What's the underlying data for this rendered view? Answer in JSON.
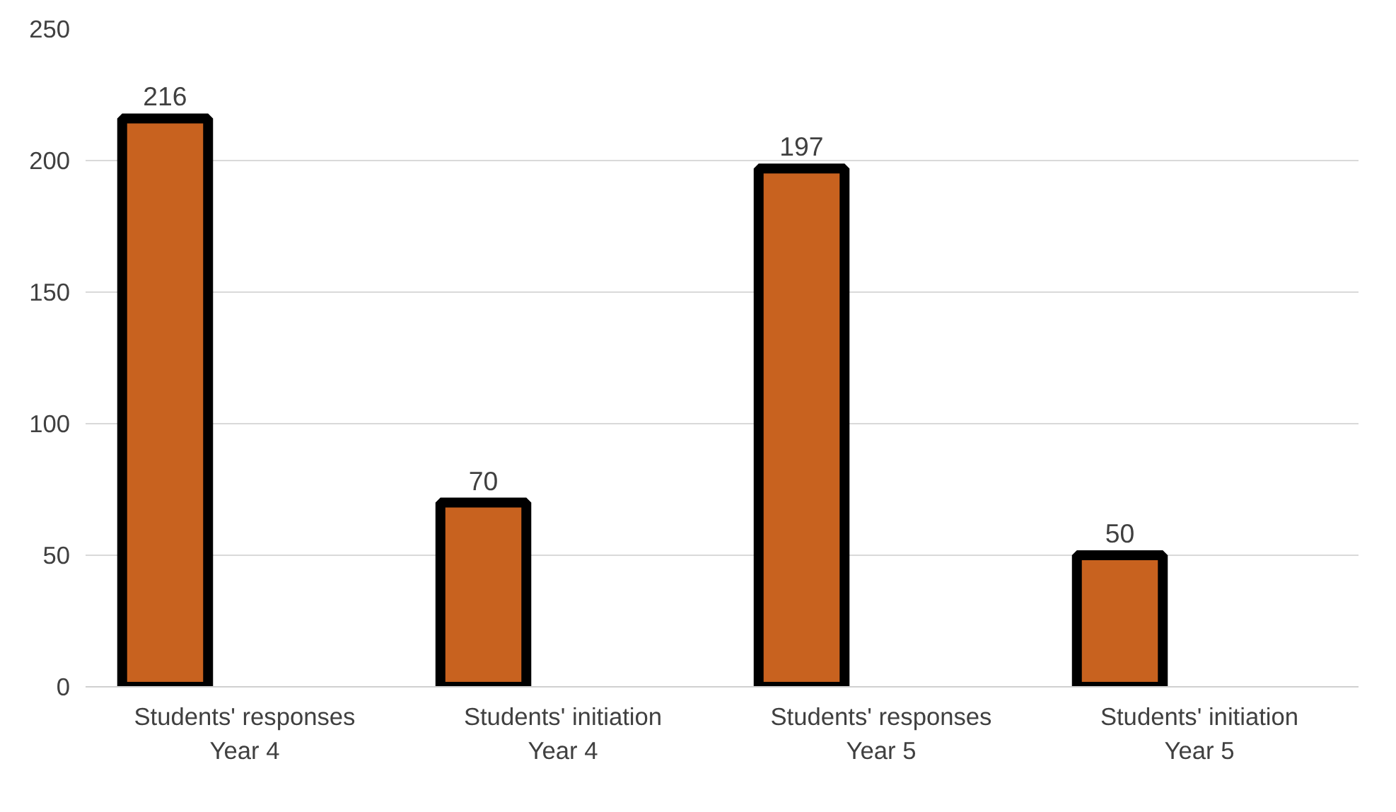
{
  "chart_data": {
    "type": "bar",
    "categories": [
      "Students' responses\nYear 4",
      "Students' initiation\nYear 4",
      "Students' responses\nYear 5",
      "Students' initiation\nYear 5"
    ],
    "values": [
      216,
      70,
      197,
      50
    ],
    "color": "#c8621f",
    "ylim": [
      0,
      250
    ],
    "yticks": [
      0,
      50,
      100,
      150,
      200,
      250
    ],
    "grid": "y",
    "data_labels": true
  }
}
